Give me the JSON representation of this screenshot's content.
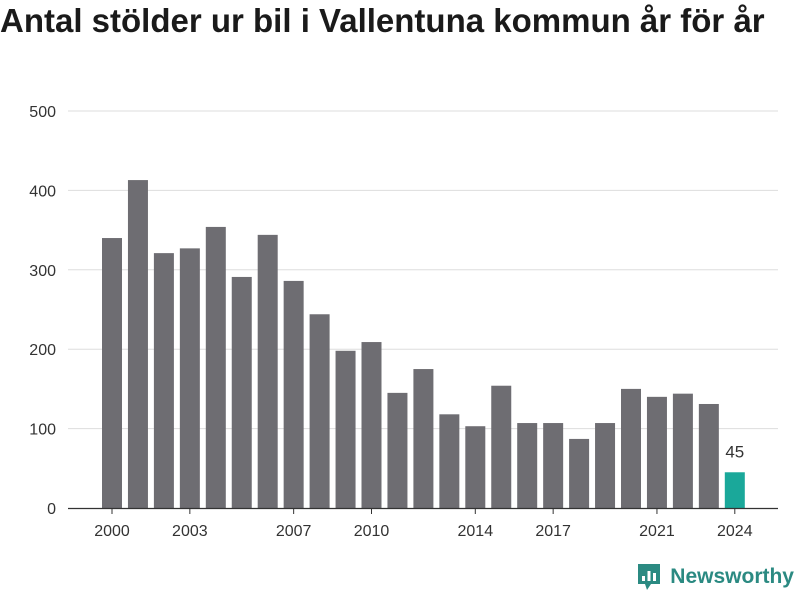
{
  "chart_data": {
    "type": "bar",
    "title": "Antal stölder ur bil i Vallentuna kommun år för år",
    "categories": [
      "2000",
      "2001",
      "2002",
      "2003",
      "2004",
      "2005",
      "2006",
      "2007",
      "2008",
      "2009",
      "2010",
      "2011",
      "2012",
      "2013",
      "2014",
      "2015",
      "2016",
      "2017",
      "2018",
      "2019",
      "2020",
      "2021",
      "2022",
      "2023",
      "2024"
    ],
    "values": [
      340,
      413,
      321,
      327,
      354,
      291,
      344,
      286,
      244,
      198,
      209,
      145,
      175,
      118,
      103,
      154,
      107,
      107,
      87,
      107,
      150,
      140,
      144,
      131,
      45
    ],
    "ylim": [
      0,
      500
    ],
    "yticks": [
      0,
      100,
      200,
      300,
      400,
      500
    ],
    "xtick_labels": [
      "2000",
      "2003",
      "2007",
      "2010",
      "2014",
      "2017",
      "2021",
      "2024"
    ],
    "colors": {
      "bar": "#6e6d72",
      "highlight": "#1aa89a",
      "grid": "#dddddd"
    },
    "highlight_index": 24,
    "data_labels": [
      {
        "index": 24,
        "text": "45"
      }
    ],
    "grid": true,
    "legend": "none"
  },
  "brand": {
    "name": "Newsworthy",
    "icon": "bar-chart-logo-icon"
  }
}
